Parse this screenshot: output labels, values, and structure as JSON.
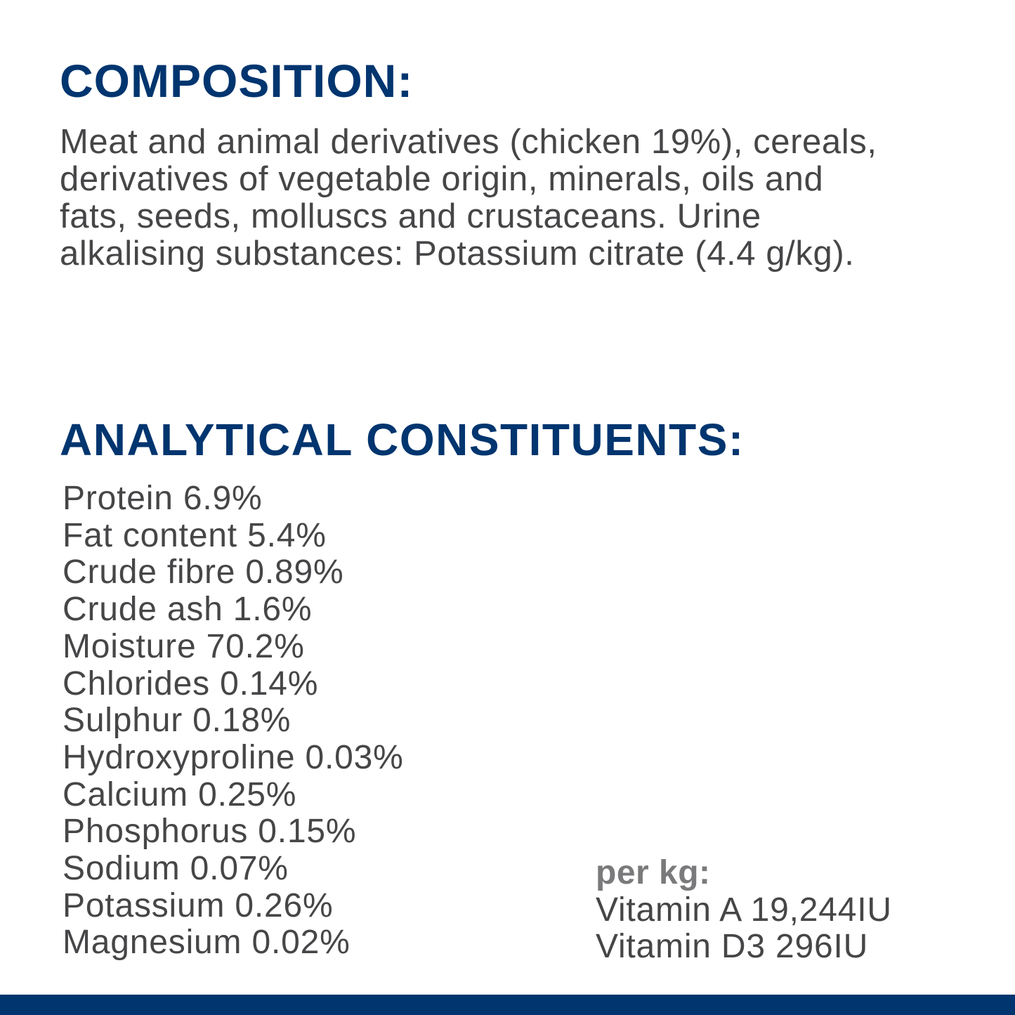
{
  "composition": {
    "heading": "COMPOSITION:",
    "lines": [
      "Meat and animal derivatives (chicken 19%), cereals,",
      "derivatives of vegetable origin, minerals, oils and",
      "fats, seeds, molluscs and crustaceans. Urine",
      "alkalising substances: Potassium citrate (4.4 g/kg)."
    ]
  },
  "analytical": {
    "heading": "ANALYTICAL CONSTITUENTS:",
    "items": [
      "Protein 6.9%",
      "Fat content 5.4%",
      "Crude fibre 0.89%",
      "Crude ash 1.6%",
      "Moisture 70.2%",
      "Chlorides 0.14%",
      "Sulphur 0.18%",
      "Hydroxyproline 0.03%",
      "Calcium 0.25%",
      "Phosphorus 0.15%",
      "Sodium 0.07%",
      "Potassium 0.26%",
      "Magnesium 0.02%"
    ],
    "per_kg": {
      "label": "per kg:",
      "items": [
        "Vitamin A 19,244IU",
        "Vitamin D3 296IU"
      ]
    }
  },
  "colors": {
    "heading": "#00356f",
    "text": "#464648",
    "label": "#7a7a7c",
    "footer_bar": "#00356f"
  }
}
